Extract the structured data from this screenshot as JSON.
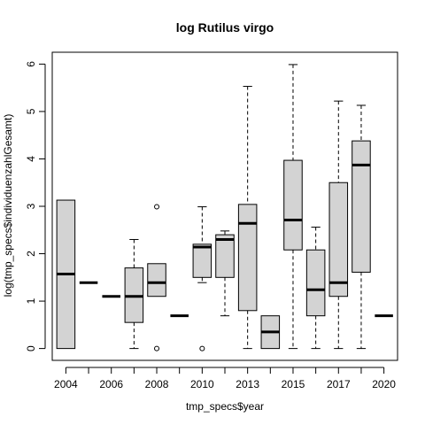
{
  "chart_data": {
    "type": "boxplot",
    "title": "log Rutilus virgo",
    "xlabel": "tmp_specs$year",
    "ylabel": "log(tmp_specs$individuenzahlGesamt)",
    "ylim": [
      -0.25,
      6.25
    ],
    "y_ticks": [
      0,
      1,
      2,
      3,
      4,
      5,
      6
    ],
    "categories": [
      "2004",
      "2005",
      "2006",
      "2007",
      "2008",
      "2009",
      "2010",
      "2011",
      "2013",
      "2014",
      "2015",
      "2016",
      "2017",
      "2018",
      "2020"
    ],
    "shown_x_tick_labels": [
      "2004",
      "2006",
      "2008",
      "2010",
      "2013",
      "2015",
      "2017",
      "2020"
    ],
    "boxes": [
      {
        "min": 0,
        "q1": 0,
        "median": 1.57,
        "q3": 3.13,
        "max": 3.13,
        "outliers": []
      },
      {
        "min": 1.39,
        "q1": 1.39,
        "median": 1.39,
        "q3": 1.39,
        "max": 1.39,
        "outliers": []
      },
      {
        "min": 1.1,
        "q1": 1.1,
        "median": 1.1,
        "q3": 1.1,
        "max": 1.1,
        "outliers": []
      },
      {
        "min": 0,
        "q1": 0.55,
        "median": 1.1,
        "q3": 1.7,
        "max": 2.3,
        "outliers": []
      },
      {
        "min": 1.1,
        "q1": 1.1,
        "median": 1.39,
        "q3": 1.79,
        "max": 1.79,
        "outliers": [
          2.99,
          0
        ]
      },
      {
        "min": 0.69,
        "q1": 0.69,
        "median": 0.69,
        "q3": 0.69,
        "max": 0.69,
        "outliers": []
      },
      {
        "min": 1.39,
        "q1": 1.5,
        "median": 2.14,
        "q3": 2.2,
        "max": 2.99,
        "outliers": [
          0
        ]
      },
      {
        "min": 0.69,
        "q1": 1.5,
        "median": 2.3,
        "q3": 2.4,
        "max": 2.48,
        "outliers": []
      },
      {
        "min": 0,
        "q1": 0.8,
        "median": 2.64,
        "q3": 3.04,
        "max": 5.53,
        "outliers": []
      },
      {
        "min": 0,
        "q1": 0,
        "median": 0.35,
        "q3": 0.69,
        "max": 0.69,
        "outliers": []
      },
      {
        "min": 0,
        "q1": 2.08,
        "median": 2.71,
        "q3": 3.97,
        "max": 5.99,
        "outliers": []
      },
      {
        "min": 0,
        "q1": 0.69,
        "median": 1.24,
        "q3": 2.08,
        "max": 2.56,
        "outliers": []
      },
      {
        "min": 0,
        "q1": 1.1,
        "median": 1.39,
        "q3": 3.5,
        "max": 5.22,
        "outliers": []
      },
      {
        "min": 0,
        "q1": 1.61,
        "median": 3.87,
        "q3": 4.38,
        "max": 5.13,
        "outliers": []
      },
      {
        "min": 0.69,
        "q1": 0.69,
        "median": 0.69,
        "q3": 0.69,
        "max": 0.69,
        "outliers": []
      }
    ],
    "box_fill": "#d3d3d3",
    "grid": false
  }
}
